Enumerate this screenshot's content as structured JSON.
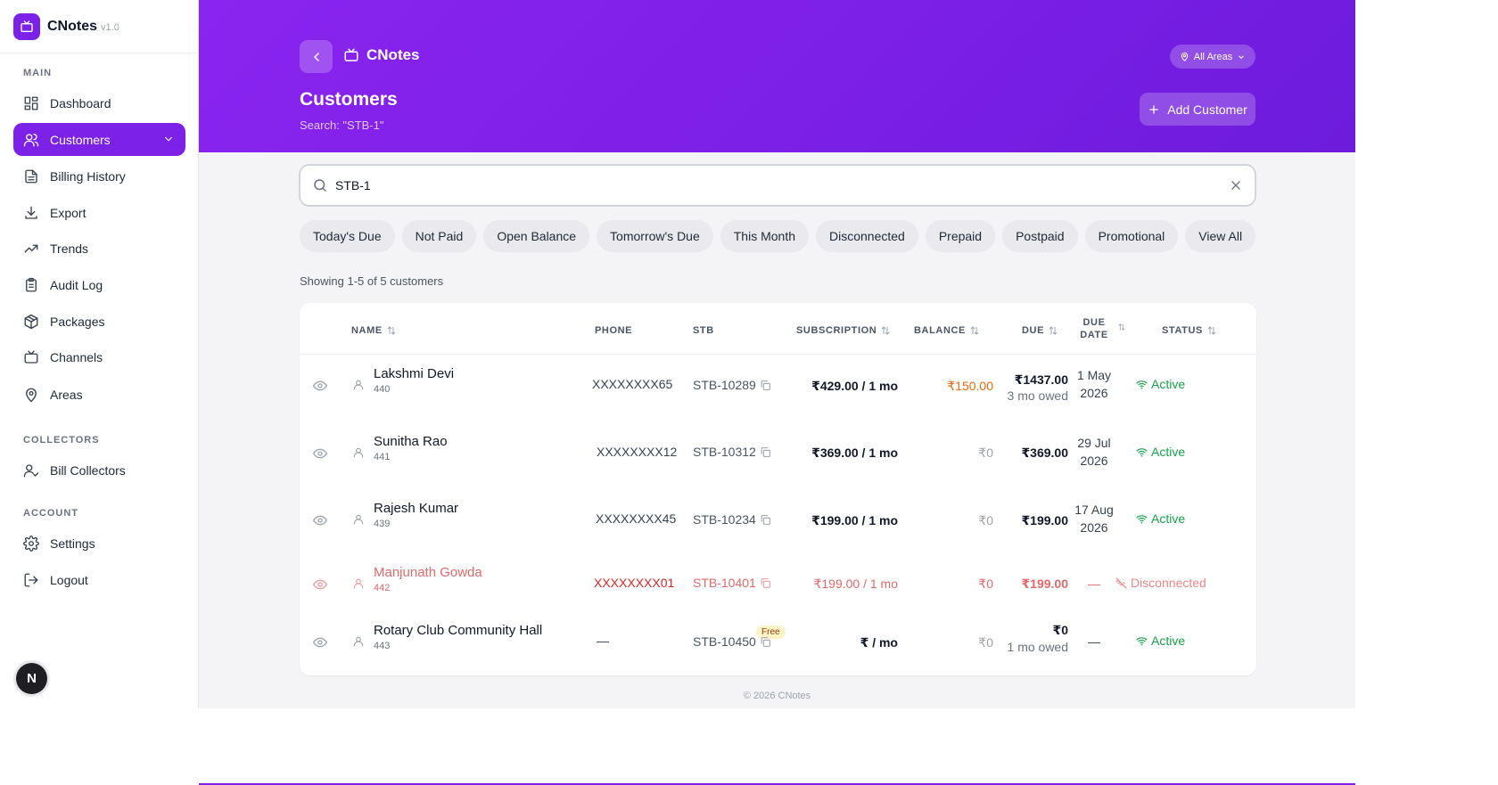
{
  "app": {
    "name": "CNotes",
    "version": "v1.0"
  },
  "sidebar": {
    "sections": {
      "main": "MAIN",
      "collectors": "COLLECTORS",
      "account": "ACCOUNT"
    },
    "items": [
      {
        "label": "Dashboard",
        "icon": "dashboard-icon"
      },
      {
        "label": "Customers",
        "icon": "users-icon",
        "active": true
      },
      {
        "label": "Billing History",
        "icon": "document-icon"
      },
      {
        "label": "Export",
        "icon": "download-icon"
      },
      {
        "label": "Trends",
        "icon": "trend-icon"
      },
      {
        "label": "Audit Log",
        "icon": "clipboard-icon"
      },
      {
        "label": "Packages",
        "icon": "package-icon"
      },
      {
        "label": "Channels",
        "icon": "tv-icon"
      },
      {
        "label": "Areas",
        "icon": "map-pin-icon"
      },
      {
        "label": "Bill Collectors",
        "icon": "user-check-icon"
      },
      {
        "label": "Settings",
        "icon": "gear-icon"
      },
      {
        "label": "Logout",
        "icon": "logout-icon"
      }
    ],
    "fab_label": "N"
  },
  "header": {
    "brand": "CNotes",
    "title": "Customers",
    "subtitle": "Search: \"STB-1\"",
    "areas_label": "All Areas",
    "add_label": "Add Customer"
  },
  "search": {
    "value": "STB-1"
  },
  "filters": [
    "Today's Due",
    "Not Paid",
    "Open Balance",
    "Tomorrow's Due",
    "This Month",
    "Disconnected",
    "Prepaid",
    "Postpaid",
    "Promotional",
    "View All"
  ],
  "showing": "Showing 1-5 of 5 customers",
  "table": {
    "columns": {
      "name": "NAME",
      "phone": "PHONE",
      "stb": "STB",
      "subscription": "SUBSCRIPTION",
      "balance": "BALANCE",
      "due": "DUE",
      "due_date_1": "DUE",
      "due_date_2": "DATE",
      "status": "STATUS"
    },
    "rows": [
      {
        "name": "Lakshmi Devi",
        "id": "440",
        "phone": "XXXXXXXX65",
        "stb": "STB-10289",
        "subscription": "₹429.00 / 1 mo",
        "balance": "₹150.00",
        "due": "₹1437.00",
        "due_note": "3 mo owed",
        "due_date_1": "1 May",
        "due_date_2": "2026",
        "status": "Active"
      },
      {
        "name": "Sunitha Rao",
        "id": "441",
        "phone": "XXXXXXXX12",
        "stb": "STB-10312",
        "subscription": "₹369.00 / 1 mo",
        "balance": "₹0",
        "due": "₹369.00",
        "due_note": "",
        "due_date_1": "29 Jul",
        "due_date_2": "2026",
        "status": "Active"
      },
      {
        "name": "Rajesh Kumar",
        "id": "439",
        "phone": "XXXXXXXX45",
        "stb": "STB-10234",
        "subscription": "₹199.00 / 1 mo",
        "balance": "₹0",
        "due": "₹199.00",
        "due_note": "",
        "due_date_1": "17 Aug",
        "due_date_2": "2026",
        "status": "Active"
      },
      {
        "name": "Manjunath Gowda",
        "id": "442",
        "phone": "XXXXXXXX01",
        "stb": "STB-10401",
        "subscription": "₹199.00 / 1 mo",
        "balance": "₹0",
        "due": "₹199.00",
        "due_note": "",
        "due_date_1": "—",
        "due_date_2": "",
        "status": "Disconnected"
      },
      {
        "name": "Rotary Club Community Hall",
        "badge": "Free",
        "id": "443",
        "phone": "—",
        "stb": "STB-10450",
        "subscription": "₹ / mo",
        "balance": "₹0",
        "due": "₹0",
        "due_note": "1 mo owed",
        "due_date_1": "—",
        "due_date_2": "",
        "status": "Active"
      }
    ]
  },
  "footer": "© 2026 CNotes",
  "colors": {
    "accent": "#7c22e8",
    "active": "#16a34a",
    "disconnected": "#e16a6a",
    "balance_owed": "#ea6a0c"
  }
}
